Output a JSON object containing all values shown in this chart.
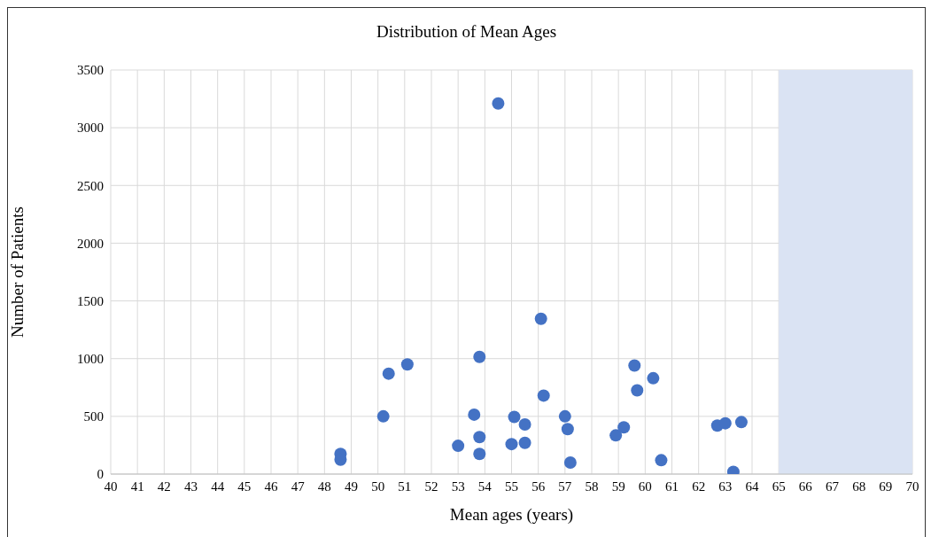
{
  "chart_data": {
    "type": "scatter",
    "title": "Distribution of Mean Ages",
    "xlabel": "Mean ages (years)",
    "ylabel": "Number of Patients",
    "x": [
      48.6,
      48.6,
      50.2,
      50.4,
      51.1,
      53.0,
      53.6,
      53.8,
      53.8,
      53.8,
      54.5,
      55.0,
      55.1,
      55.5,
      55.5,
      56.1,
      56.2,
      57.0,
      57.1,
      57.2,
      58.9,
      59.2,
      59.6,
      59.7,
      60.3,
      60.6,
      62.7,
      63.0,
      63.3,
      63.6
    ],
    "values": [
      175,
      125,
      500,
      870,
      950,
      245,
      515,
      1015,
      320,
      175,
      3210,
      260,
      495,
      270,
      430,
      1345,
      680,
      500,
      390,
      100,
      335,
      405,
      940,
      725,
      830,
      120,
      420,
      440,
      20,
      450
    ],
    "color": "#4472c4",
    "marker": "circle",
    "xlim": [
      40,
      70
    ],
    "xticks": [
      40,
      41,
      42,
      43,
      44,
      45,
      46,
      47,
      48,
      49,
      50,
      51,
      52,
      53,
      54,
      55,
      56,
      57,
      58,
      59,
      60,
      61,
      62,
      63,
      64,
      65,
      66,
      67,
      68,
      69,
      70
    ],
    "ylim": [
      0,
      3500
    ],
    "yticks": [
      0,
      500,
      1000,
      1500,
      2000,
      2500,
      3000,
      3500
    ],
    "grid": true,
    "bands": [
      {
        "axis": "x",
        "from": 65,
        "to": 70,
        "color": "#dae3f3"
      }
    ]
  }
}
